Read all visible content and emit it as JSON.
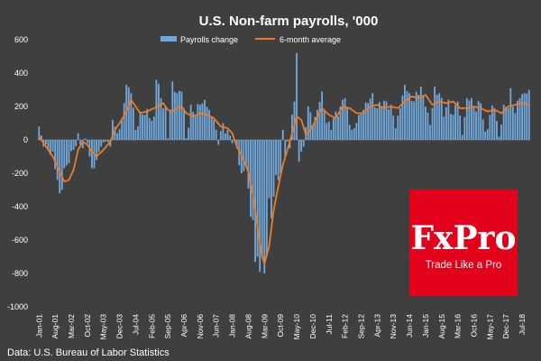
{
  "page": {
    "source": "Data: U.S. Bureau of Labor Statistics",
    "logo": {
      "brand": "FxPro",
      "tagline": "Trade Like a Pro"
    }
  },
  "colors": {
    "background": "#3f3f3f",
    "bar": "#6fa8dc",
    "line": "#f07b22",
    "logo_bg": "#e3001b"
  },
  "chart_data": {
    "type": "bar",
    "title": "U.S. Non-farm payrolls, '000",
    "xlabel": "",
    "ylabel": "",
    "ylim": [
      -1000,
      600
    ],
    "yticks": [
      600,
      400,
      200,
      0,
      -200,
      -400,
      -600,
      -800,
      -1000
    ],
    "x_tick_labels": [
      "Jan-01",
      "Aug-01",
      "Mar-02",
      "Oct-02",
      "May-03",
      "Dec-03",
      "Jul-04",
      "Feb-05",
      "Sep-05",
      "Apr-06",
      "Nov-06",
      "Jun-07",
      "Jan-08",
      "Aug-08",
      "Mar-09",
      "Oct-09",
      "May-10",
      "Dec-10",
      "Jul-11",
      "Feb-12",
      "Sep-12",
      "Apr-13",
      "Nov-13",
      "Jun-14",
      "Jan-15",
      "Aug-15",
      "Mar-16",
      "Oct-16",
      "May-17",
      "Dec-17",
      "Jul-18"
    ],
    "period_start": "Jan-01",
    "period_end": "Oct-18",
    "grid": false,
    "legend_position": "top",
    "series": [
      {
        "name": "Payrolls change",
        "type": "bar",
        "anchors": [
          [
            "Jan-01",
            80
          ],
          [
            "Mar-01",
            -40
          ],
          [
            "May-01",
            -60
          ],
          [
            "Jul-01",
            -70
          ],
          [
            "Sep-01",
            -240
          ],
          [
            "Oct-01",
            -320
          ],
          [
            "Nov-01",
            -300
          ],
          [
            "Dec-01",
            -170
          ],
          [
            "Feb-02",
            -140
          ],
          [
            "Apr-02",
            -60
          ],
          [
            "Jun-02",
            40
          ],
          [
            "Aug-02",
            -50
          ],
          [
            "Oct-02",
            -20
          ],
          [
            "Dec-02",
            -170
          ],
          [
            "Feb-03",
            -120
          ],
          [
            "Apr-03",
            -40
          ],
          [
            "Jun-03",
            -10
          ],
          [
            "Aug-03",
            -40
          ],
          [
            "Sep-03",
            120
          ],
          [
            "Nov-03",
            40
          ],
          [
            "Jan-04",
            120
          ],
          [
            "Mar-04",
            330
          ],
          [
            "May-04",
            280
          ],
          [
            "Jul-04",
            60
          ],
          [
            "Sep-04",
            170
          ],
          [
            "Nov-04",
            150
          ],
          [
            "Jan-05",
            130
          ],
          [
            "Mar-05",
            140
          ],
          [
            "Apr-05",
            360
          ],
          [
            "Jun-05",
            250
          ],
          [
            "Aug-05",
            200
          ],
          [
            "Sep-05",
            10
          ],
          [
            "Nov-05",
            350
          ],
          [
            "Jan-06",
            280
          ],
          [
            "Mar-06",
            290
          ],
          [
            "May-06",
            10
          ],
          [
            "Jul-06",
            210
          ],
          [
            "Sep-06",
            150
          ],
          [
            "Nov-06",
            210
          ],
          [
            "Jan-07",
            240
          ],
          [
            "Mar-07",
            180
          ],
          [
            "May-07",
            120
          ],
          [
            "Jul-07",
            -30
          ],
          [
            "Sep-07",
            100
          ],
          [
            "Nov-07",
            60
          ],
          [
            "Jan-08",
            -20
          ],
          [
            "Mar-08",
            -50
          ],
          [
            "May-08",
            -200
          ],
          [
            "Jul-08",
            -150
          ],
          [
            "Sep-08",
            -460
          ],
          [
            "Oct-08",
            -480
          ],
          [
            "Nov-08",
            -730
          ],
          [
            "Dec-08",
            -700
          ],
          [
            "Jan-09",
            -790
          ],
          [
            "Feb-09",
            -700
          ],
          [
            "Mar-09",
            -800
          ],
          [
            "Apr-09",
            -700
          ],
          [
            "May-09",
            -350
          ],
          [
            "Jun-09",
            -470
          ],
          [
            "Jul-09",
            -340
          ],
          [
            "Aug-09",
            -210
          ],
          [
            "Sep-09",
            -240
          ],
          [
            "Oct-09",
            -200
          ],
          [
            "Nov-09",
            60
          ],
          [
            "Dec-09",
            -110
          ],
          [
            "Jan-10",
            -10
          ],
          [
            "Feb-10",
            -50
          ],
          [
            "Mar-10",
            150
          ],
          [
            "Apr-10",
            230
          ],
          [
            "May-10",
            520
          ],
          [
            "Jun-10",
            -130
          ],
          [
            "Jul-10",
            -70
          ],
          [
            "Aug-10",
            -40
          ],
          [
            "Oct-10",
            200
          ],
          [
            "Dec-10",
            90
          ],
          [
            "Feb-11",
            180
          ],
          [
            "Apr-11",
            290
          ],
          [
            "Jun-11",
            100
          ],
          [
            "Aug-11",
            60
          ],
          [
            "Oct-11",
            170
          ],
          [
            "Dec-11",
            200
          ],
          [
            "Feb-12",
            250
          ],
          [
            "Apr-12",
            90
          ],
          [
            "Jun-12",
            70
          ],
          [
            "Aug-12",
            150
          ],
          [
            "Oct-12",
            180
          ],
          [
            "Dec-12",
            220
          ],
          [
            "Feb-13",
            280
          ],
          [
            "Apr-13",
            190
          ],
          [
            "Jun-13",
            200
          ],
          [
            "Aug-13",
            230
          ],
          [
            "Oct-13",
            210
          ],
          [
            "Dec-13",
            70
          ],
          [
            "Feb-14",
            190
          ],
          [
            "Apr-14",
            330
          ],
          [
            "Jun-14",
            280
          ],
          [
            "Aug-14",
            230
          ],
          [
            "Oct-14",
            270
          ],
          [
            "Nov-14",
            320
          ],
          [
            "Jan-15",
            200
          ],
          [
            "Mar-15",
            90
          ],
          [
            "May-15",
            320
          ],
          [
            "Jul-15",
            280
          ],
          [
            "Sep-15",
            140
          ],
          [
            "Nov-15",
            240
          ],
          [
            "Jan-16",
            150
          ],
          [
            "Mar-16",
            230
          ],
          [
            "May-16",
            30
          ],
          [
            "Jul-16",
            250
          ],
          [
            "Sep-16",
            250
          ],
          [
            "Nov-16",
            170
          ],
          [
            "Jan-17",
            220
          ],
          [
            "Mar-17",
            50
          ],
          [
            "May-17",
            150
          ],
          [
            "Jul-17",
            190
          ],
          [
            "Sep-17",
            20
          ],
          [
            "Nov-17",
            210
          ],
          [
            "Jan-18",
            190
          ],
          [
            "Feb-18",
            310
          ],
          [
            "Apr-18",
            160
          ],
          [
            "Jun-18",
            250
          ],
          [
            "Aug-18",
            280
          ],
          [
            "Oct-18",
            300
          ]
        ]
      },
      {
        "name": "6-month average",
        "type": "line",
        "anchors": [
          [
            "Jan-01",
            20
          ],
          [
            "Apr-01",
            -40
          ],
          [
            "Jul-01",
            -100
          ],
          [
            "Oct-01",
            -190
          ],
          [
            "Dec-01",
            -250
          ],
          [
            "Feb-02",
            -240
          ],
          [
            "Apr-02",
            -180
          ],
          [
            "Jun-02",
            -60
          ],
          [
            "Aug-02",
            -10
          ],
          [
            "Oct-02",
            -30
          ],
          [
            "Dec-02",
            -70
          ],
          [
            "Feb-03",
            -100
          ],
          [
            "May-03",
            -60
          ],
          [
            "Aug-03",
            -10
          ],
          [
            "Oct-03",
            60
          ],
          [
            "Dec-03",
            100
          ],
          [
            "Mar-04",
            170
          ],
          [
            "May-04",
            240
          ],
          [
            "Jul-04",
            200
          ],
          [
            "Sep-04",
            160
          ],
          [
            "Dec-04",
            170
          ],
          [
            "Mar-05",
            190
          ],
          [
            "May-05",
            200
          ],
          [
            "Jul-05",
            220
          ],
          [
            "Sep-05",
            180
          ],
          [
            "Nov-05",
            170
          ],
          [
            "Jan-06",
            190
          ],
          [
            "Mar-06",
            200
          ],
          [
            "May-06",
            160
          ],
          [
            "Aug-06",
            140
          ],
          [
            "Nov-06",
            160
          ],
          [
            "Feb-07",
            150
          ],
          [
            "May-07",
            130
          ],
          [
            "Aug-07",
            80
          ],
          [
            "Nov-07",
            70
          ],
          [
            "Jan-08",
            40
          ],
          [
            "Mar-08",
            -40
          ],
          [
            "May-08",
            -90
          ],
          [
            "Aug-08",
            -190
          ],
          [
            "Oct-08",
            -330
          ],
          [
            "Dec-08",
            -520
          ],
          [
            "Feb-09",
            -700
          ],
          [
            "Mar-09",
            -740
          ],
          [
            "May-09",
            -640
          ],
          [
            "Jul-09",
            -420
          ],
          [
            "Sep-09",
            -280
          ],
          [
            "Nov-09",
            -150
          ],
          [
            "Jan-10",
            -60
          ],
          [
            "Mar-10",
            40
          ],
          [
            "May-10",
            140
          ],
          [
            "Jul-10",
            120
          ],
          [
            "Sep-10",
            30
          ],
          [
            "Nov-10",
            60
          ],
          [
            "Jan-11",
            110
          ],
          [
            "Apr-11",
            190
          ],
          [
            "Jul-11",
            150
          ],
          [
            "Oct-11",
            130
          ],
          [
            "Jan-12",
            200
          ],
          [
            "Apr-12",
            190
          ],
          [
            "Jul-12",
            160
          ],
          [
            "Oct-12",
            160
          ],
          [
            "Jan-13",
            200
          ],
          [
            "Apr-13",
            210
          ],
          [
            "Jul-13",
            190
          ],
          [
            "Oct-13",
            200
          ],
          [
            "Jan-14",
            190
          ],
          [
            "Apr-14",
            230
          ],
          [
            "Jul-14",
            260
          ],
          [
            "Oct-14",
            250
          ],
          [
            "Jan-15",
            270
          ],
          [
            "Apr-15",
            210
          ],
          [
            "Jul-15",
            230
          ],
          [
            "Oct-15",
            220
          ],
          [
            "Jan-16",
            230
          ],
          [
            "Apr-16",
            190
          ],
          [
            "Jul-16",
            190
          ],
          [
            "Oct-16",
            200
          ],
          [
            "Jan-17",
            190
          ],
          [
            "Apr-17",
            170
          ],
          [
            "Jul-17",
            180
          ],
          [
            "Oct-17",
            160
          ],
          [
            "Jan-18",
            200
          ],
          [
            "Apr-18",
            210
          ],
          [
            "Jul-18",
            220
          ],
          [
            "Oct-18",
            210
          ]
        ]
      }
    ]
  }
}
